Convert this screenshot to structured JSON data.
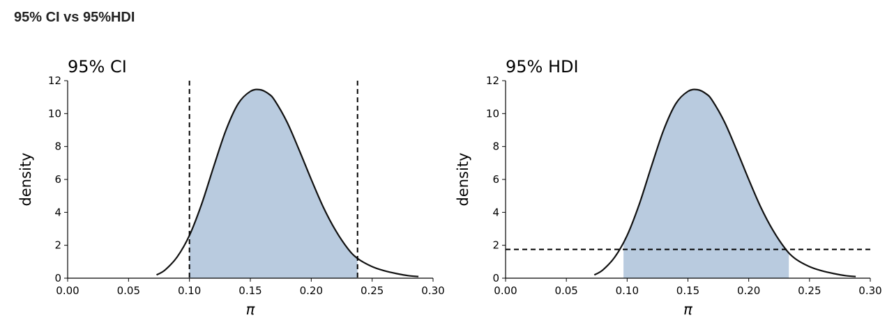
{
  "page": {
    "title": "95% CI vs 95%HDI"
  },
  "chart_data": [
    {
      "type": "area",
      "title": "95% CI",
      "xlabel": "π",
      "ylabel": "density",
      "xlim": [
        0.0,
        0.3
      ],
      "ylim": [
        0,
        12
      ],
      "xticks": [
        "0.00",
        "0.05",
        "0.10",
        "0.15",
        "0.20",
        "0.25",
        "0.30"
      ],
      "yticks": [
        "0",
        "2",
        "4",
        "6",
        "8",
        "10",
        "12"
      ],
      "curve": {
        "x": [
          0.073,
          0.08,
          0.09,
          0.1,
          0.11,
          0.12,
          0.13,
          0.14,
          0.15,
          0.158,
          0.165,
          0.17,
          0.18,
          0.19,
          0.2,
          0.21,
          0.22,
          0.23,
          0.238,
          0.25,
          0.26,
          0.27,
          0.28,
          0.288
        ],
        "y": [
          0.2,
          0.5,
          1.3,
          2.6,
          4.5,
          6.8,
          9.0,
          10.6,
          11.35,
          11.45,
          11.2,
          10.8,
          9.5,
          7.8,
          6.0,
          4.3,
          2.9,
          1.8,
          1.2,
          0.7,
          0.45,
          0.28,
          0.15,
          0.1
        ]
      },
      "shaded_interval": [
        0.1,
        0.238
      ],
      "vertical_lines": [
        0.1,
        0.238
      ],
      "grid": false,
      "color_fill": "#b9cbdf",
      "color_line": "#111111"
    },
    {
      "type": "area",
      "title": "95% HDI",
      "xlabel": "π",
      "ylabel": "density",
      "xlim": [
        0.0,
        0.3
      ],
      "ylim": [
        0,
        12
      ],
      "xticks": [
        "0.00",
        "0.05",
        "0.10",
        "0.15",
        "0.20",
        "0.25",
        "0.30"
      ],
      "yticks": [
        "0",
        "2",
        "4",
        "6",
        "8",
        "10",
        "12"
      ],
      "curve": {
        "x": [
          0.073,
          0.08,
          0.09,
          0.1,
          0.11,
          0.12,
          0.13,
          0.14,
          0.15,
          0.158,
          0.165,
          0.17,
          0.18,
          0.19,
          0.2,
          0.21,
          0.22,
          0.23,
          0.238,
          0.25,
          0.26,
          0.27,
          0.28,
          0.288
        ],
        "y": [
          0.2,
          0.5,
          1.3,
          2.6,
          4.5,
          6.8,
          9.0,
          10.6,
          11.35,
          11.45,
          11.2,
          10.8,
          9.5,
          7.8,
          6.0,
          4.3,
          2.9,
          1.8,
          1.2,
          0.7,
          0.45,
          0.28,
          0.15,
          0.1
        ]
      },
      "shaded_interval": [
        0.097,
        0.233
      ],
      "horizontal_line": 1.75,
      "grid": false,
      "color_fill": "#b9cbdf",
      "color_line": "#111111"
    }
  ]
}
